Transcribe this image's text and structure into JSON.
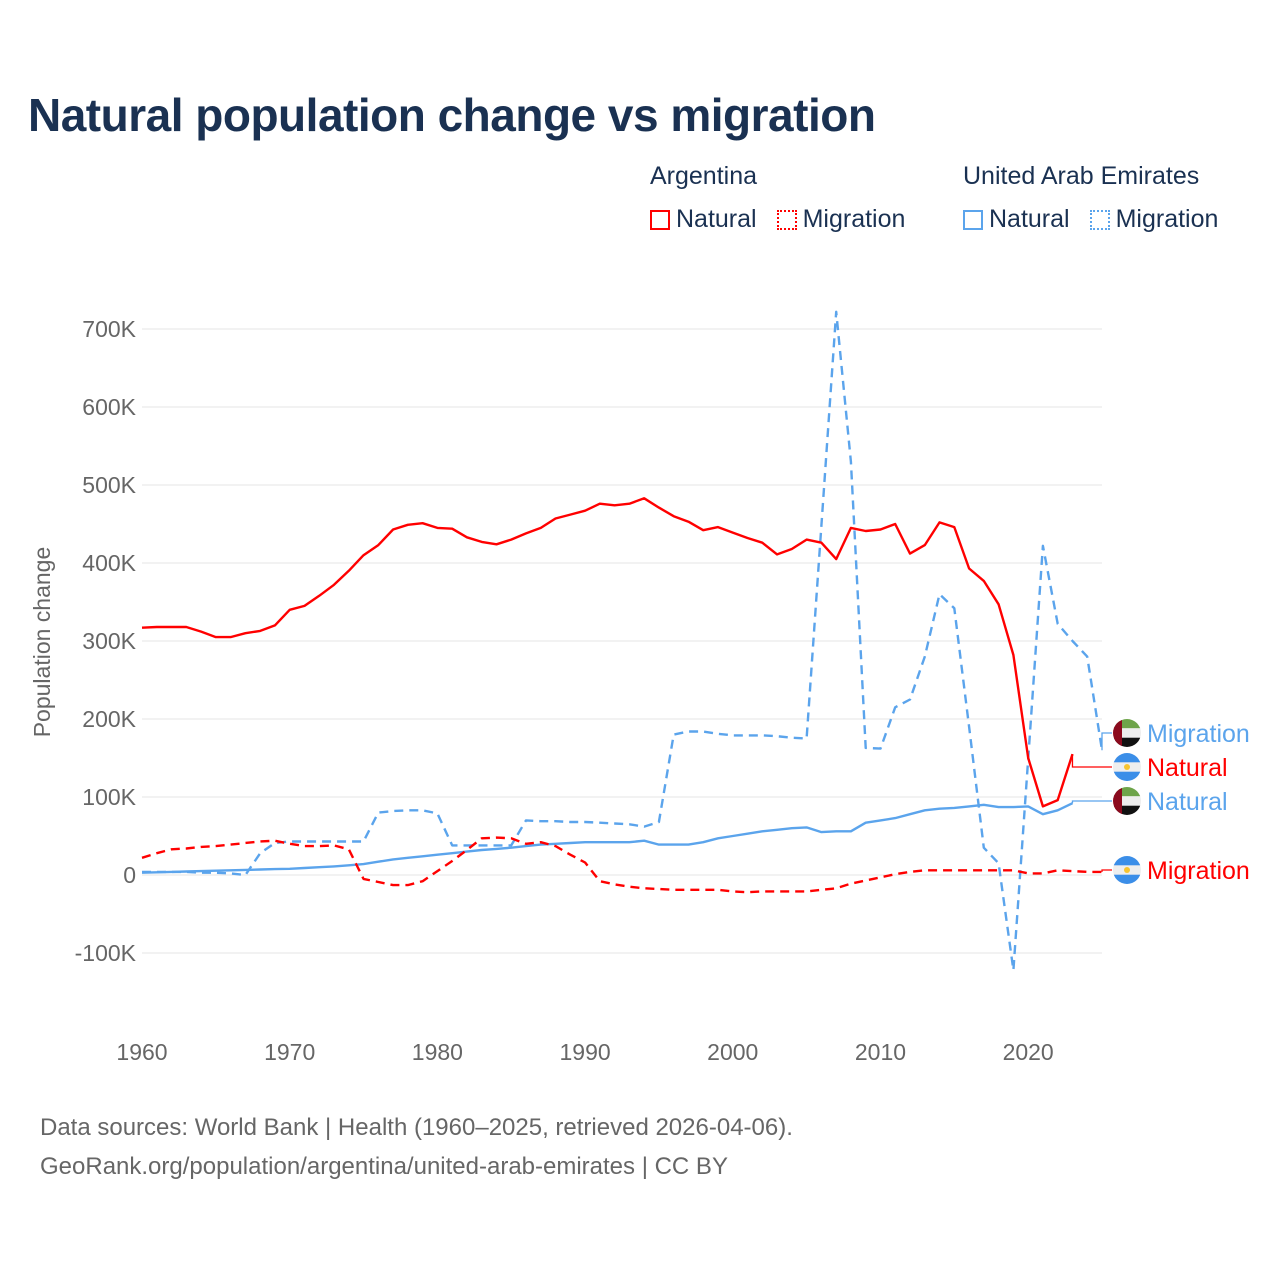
{
  "title": "Natural population change vs migration",
  "legend": {
    "groups": [
      {
        "name": "Argentina",
        "items": [
          {
            "label": "Natural",
            "color": "#ff0000",
            "style": "solid"
          },
          {
            "label": "Migration",
            "color": "#ff0000",
            "style": "dotted"
          }
        ]
      },
      {
        "name": "United Arab Emirates",
        "items": [
          {
            "label": "Natural",
            "color": "#5ba4ec",
            "style": "solid"
          },
          {
            "label": "Migration",
            "color": "#5ba4ec",
            "style": "dotted"
          }
        ]
      }
    ]
  },
  "footer": {
    "line1": "Data sources: World Bank | Health (1960–2025, retrieved 2026-04-06).",
    "line2": "GeoRank.org/population/argentina/united-arab-emirates | CC BY"
  },
  "chart_data": {
    "type": "line",
    "title": "Natural population change vs migration",
    "xlabel": "",
    "ylabel": "Population change",
    "xlim": [
      1960,
      2025
    ],
    "ylim": [
      -100000,
      700000
    ],
    "x_ticks": [
      "1960",
      "1970",
      "1980",
      "1990",
      "2000",
      "2010",
      "2020"
    ],
    "y_ticks": [
      "-100K",
      "0",
      "100K",
      "200K",
      "300K",
      "400K",
      "500K",
      "600K",
      "700K"
    ],
    "grid": true,
    "series": [
      {
        "name": "Argentina Natural",
        "country": "Argentina",
        "end_label": "Natural",
        "color": "#ff0000",
        "dash": false,
        "start_year": 1960,
        "values_k": [
          317,
          318,
          318,
          318,
          312,
          305,
          305,
          310,
          313,
          320,
          340,
          345,
          358,
          372,
          390,
          410,
          423,
          443,
          449,
          451,
          445,
          444,
          433,
          427,
          424,
          430,
          438,
          445,
          457,
          462,
          467,
          476,
          474,
          476,
          483,
          471,
          460,
          453,
          442,
          446,
          439,
          432,
          426,
          411,
          418,
          430,
          426,
          405,
          445,
          441,
          443,
          450,
          412,
          423,
          452,
          446,
          393,
          377,
          347,
          282,
          150,
          88,
          96,
          155
        ]
      },
      {
        "name": "Argentina Migration",
        "country": "Argentina",
        "end_label": "Migration",
        "color": "#ff0000",
        "dash": true,
        "start_year": 1960,
        "values_k": [
          22,
          28,
          33,
          34,
          36,
          37,
          39,
          41,
          43,
          44,
          40,
          37,
          37,
          38,
          33,
          -5,
          -9,
          -13,
          -13,
          -8,
          5,
          18,
          32,
          47,
          48,
          47,
          40,
          42,
          37,
          26,
          16,
          -8,
          -12,
          -15,
          -17,
          -18,
          -19,
          -19,
          -19,
          -19,
          -21,
          -22,
          -21,
          -21,
          -21,
          -21,
          -19,
          -17,
          -11,
          -7,
          -3,
          1,
          4,
          6,
          6,
          6,
          6,
          6,
          6,
          6,
          2,
          2,
          6,
          5,
          4,
          4
        ]
      },
      {
        "name": "United Arab Emirates Natural",
        "country": "United Arab Emirates",
        "end_label": "Natural",
        "color": "#5ba4ec",
        "dash": false,
        "start_year": 1960,
        "values_k": [
          3,
          3.5,
          4,
          4.5,
          5,
          5.5,
          6,
          6.5,
          7,
          7.5,
          8,
          9,
          10,
          11,
          12.5,
          14,
          17,
          20,
          22,
          24,
          26,
          28,
          30,
          32,
          33.5,
          35,
          37,
          39,
          40,
          41,
          42,
          42,
          42,
          42,
          44,
          39,
          39,
          39,
          42,
          47,
          50,
          53,
          56,
          58,
          60,
          61,
          55,
          56,
          56,
          67,
          70,
          73,
          78,
          83,
          85,
          86,
          88,
          90,
          87,
          87,
          88,
          78,
          83,
          92
        ]
      },
      {
        "name": "United Arab Emirates Migration",
        "country": "United Arab Emirates",
        "end_label": "Migration",
        "color": "#5ba4ec",
        "dash": true,
        "start_year": 1960,
        "values_k": [
          4,
          4,
          4,
          4,
          3,
          3,
          2,
          0,
          28,
          41,
          43,
          43,
          43,
          43,
          43,
          43,
          80,
          82,
          83,
          83,
          79,
          38,
          38,
          38,
          38,
          38,
          70,
          69,
          69,
          68,
          68,
          67,
          66,
          65,
          62,
          68,
          180,
          184,
          184,
          181,
          179,
          179,
          179,
          178,
          176,
          175,
          448,
          722,
          530,
          163,
          162,
          215,
          225,
          280,
          360,
          342,
          190,
          35,
          15,
          -122,
          149,
          422,
          322,
          300,
          280,
          160
        ]
      }
    ]
  }
}
